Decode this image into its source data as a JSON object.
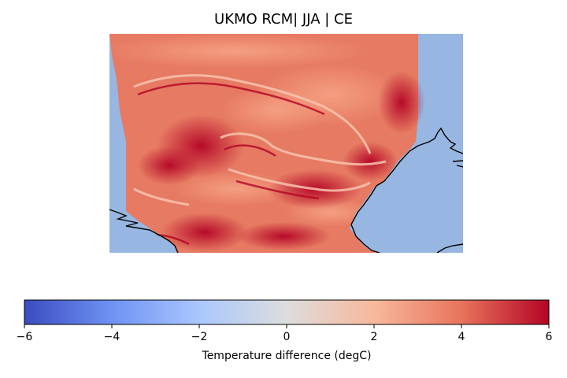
{
  "title": "UKMO RCM| JJA | CE",
  "map": {
    "colormap": "coolwarm",
    "value_range": [
      -6,
      6
    ],
    "sea_color": "#97b6e1",
    "coastline_color": "#000000"
  },
  "colorbar": {
    "label": "Temperature difference (degC)",
    "orientation": "horizontal",
    "min": -6,
    "max": 6,
    "ticks": [
      {
        "value": -6,
        "label": "−6"
      },
      {
        "value": -4,
        "label": "−4"
      },
      {
        "value": -2,
        "label": "−2"
      },
      {
        "value": 0,
        "label": "0"
      },
      {
        "value": 2,
        "label": "2"
      },
      {
        "value": 4,
        "label": "4"
      },
      {
        "value": 6,
        "label": "6"
      }
    ],
    "gradient_stops": [
      "#3b4cc0",
      "#6f92f3",
      "#aac7fd",
      "#dddddd",
      "#f7b89c",
      "#e7745b",
      "#b40426"
    ]
  }
}
